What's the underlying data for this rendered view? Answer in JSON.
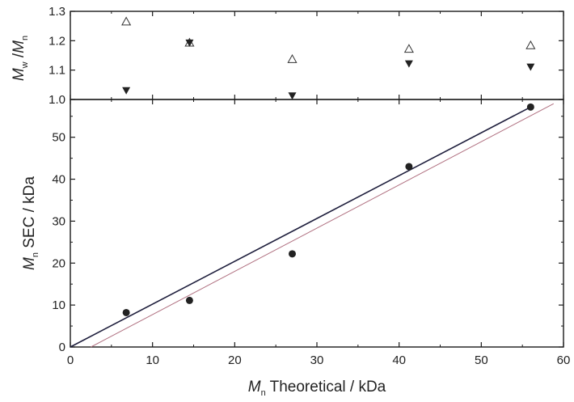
{
  "chart_data": [
    {
      "type": "scatter",
      "panel": "top",
      "xlim": [
        0,
        60
      ],
      "ylim": [
        1.0,
        1.3
      ],
      "y_ticks": [
        "1.0",
        "1.1",
        "1.2",
        "1.3"
      ],
      "ylabel": {
        "M1": "M",
        "s1": "w",
        "slash": " /",
        "M2": "M",
        "s2": "n"
      },
      "series": [
        {
          "marker": "open-triangle-up",
          "color": "#333333",
          "x": [
            6.8,
            14.5,
            27.0,
            41.2,
            56.0
          ],
          "y": [
            1.265,
            1.193,
            1.137,
            1.172,
            1.184
          ]
        },
        {
          "marker": "filled-triangle-down",
          "color": "#222222",
          "x": [
            6.8,
            14.5,
            27.0,
            41.2,
            56.0
          ],
          "y": [
            1.031,
            1.193,
            1.013,
            1.122,
            1.111
          ]
        }
      ]
    },
    {
      "type": "scatter",
      "panel": "bottom",
      "xlim": [
        0,
        60
      ],
      "ylim": [
        0,
        59
      ],
      "x_ticks": [
        "0",
        "10",
        "20",
        "30",
        "40",
        "50",
        "60"
      ],
      "y_ticks": [
        "0",
        "10",
        "20",
        "30",
        "40",
        "50"
      ],
      "xlabel": {
        "M": "M",
        "sub": "n",
        "rest": " Theoretical / kDa"
      },
      "ylabel": {
        "M": "M",
        "sub": "n",
        "rest": " SEC / kDa"
      },
      "series": [
        {
          "marker": "filled-circle",
          "color": "#222222",
          "x": [
            6.8,
            14.5,
            27.0,
            41.2,
            56.0
          ],
          "y": [
            8.2,
            11.1,
            22.2,
            43.0,
            57.2
          ]
        }
      ],
      "lines": [
        {
          "style": "fit",
          "color": "#1e1e3c",
          "x": [
            0,
            56.2
          ],
          "y": [
            0,
            57.4
          ]
        },
        {
          "style": "theory",
          "color": "#b07080",
          "x": [
            2.5,
            58.8
          ],
          "y": [
            0,
            58.0
          ]
        }
      ]
    }
  ]
}
